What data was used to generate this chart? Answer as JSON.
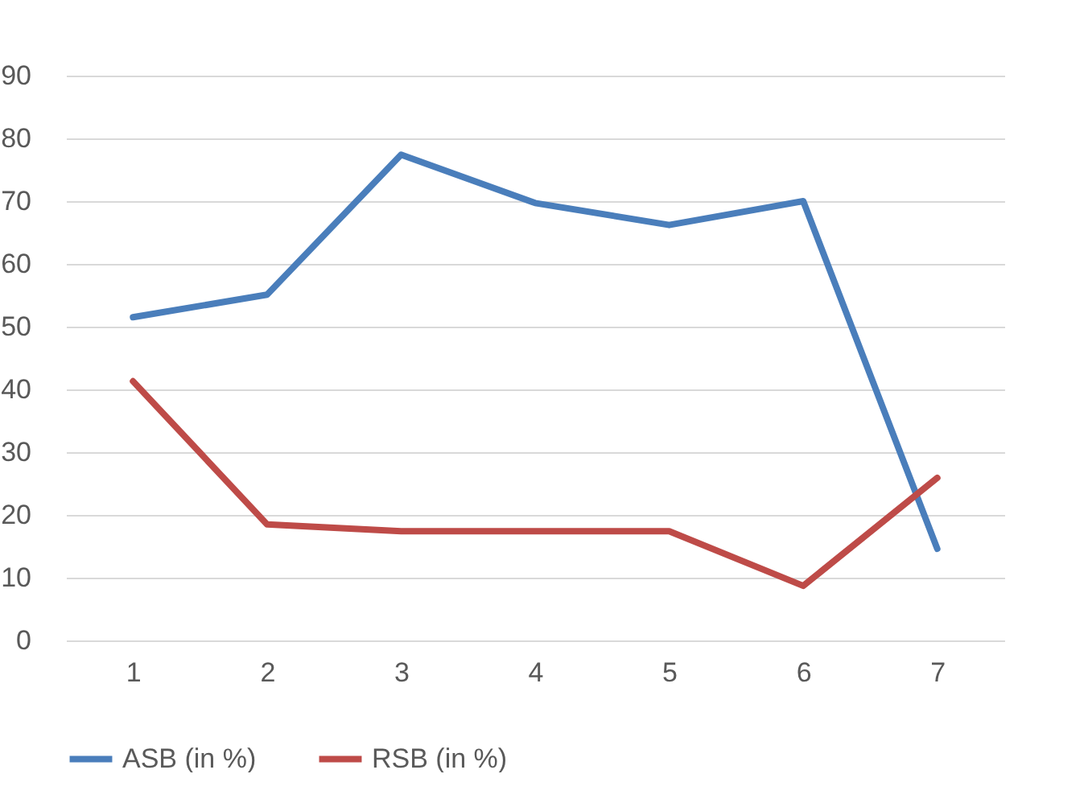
{
  "chart_data": {
    "type": "line",
    "categories": [
      "1",
      "2",
      "3",
      "4",
      "5",
      "6",
      "7"
    ],
    "series": [
      {
        "name": "ASB (in %)",
        "color": "#4a7ebb",
        "values": [
          51.5,
          55.1,
          77.4,
          69.7,
          66.2,
          70,
          14.6
        ]
      },
      {
        "name": "RSB (in %)",
        "color": "#be4b48",
        "values": [
          41.3,
          18.5,
          17.4,
          17.4,
          17.4,
          8.7,
          25.9
        ]
      }
    ],
    "ylim": [
      0,
      90
    ],
    "yticks": [
      0,
      10,
      20,
      30,
      40,
      50,
      60,
      70,
      80,
      90
    ],
    "grid": "y",
    "legend": "bottom",
    "marker": "none",
    "line_style": "solid"
  }
}
